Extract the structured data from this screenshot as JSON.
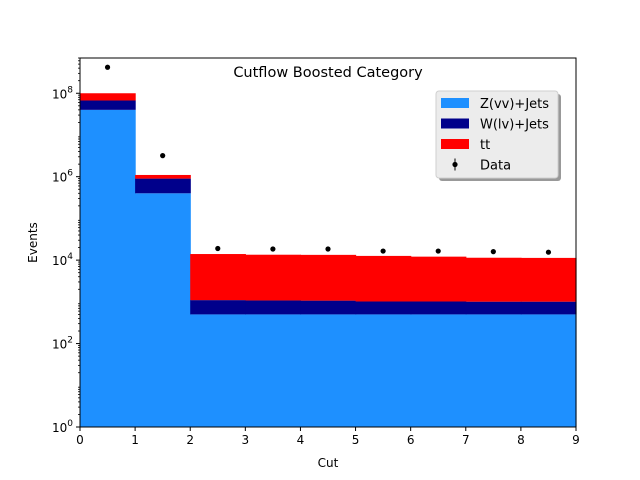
{
  "chart_data": {
    "type": "bar",
    "stacked": true,
    "histogram_steps": true,
    "title": "Cutflow Boosted Category",
    "xlabel": "Cut",
    "ylabel": "Events",
    "yscale": "log",
    "xlim": [
      0,
      9
    ],
    "ylim": [
      1,
      700000000
    ],
    "x_edges": [
      0,
      1,
      2,
      3,
      4,
      5,
      6,
      7,
      8,
      9
    ],
    "x_ticks": [
      0,
      1,
      2,
      3,
      4,
      5,
      6,
      7,
      8,
      9
    ],
    "y_ticks": [
      {
        "value": 1,
        "base": "10",
        "exp": "0"
      },
      {
        "value": 100,
        "base": "10",
        "exp": "2"
      },
      {
        "value": 10000,
        "base": "10",
        "exp": "4"
      },
      {
        "value": 1000000,
        "base": "10",
        "exp": "6"
      },
      {
        "value": 100000000,
        "base": "10",
        "exp": "8"
      }
    ],
    "series": [
      {
        "name": "Z(vv)+Jets",
        "color": "#1e90ff",
        "values": [
          40000000,
          400000,
          500,
          500,
          500,
          500,
          500,
          500,
          500
        ]
      },
      {
        "name": "W(lv)+Jets",
        "color": "#00008b",
        "values": [
          27000000,
          500000,
          600,
          580,
          570,
          520,
          520,
          510,
          510
        ]
      },
      {
        "name": "tt",
        "color": "#ff0000",
        "values": [
          33000000,
          200000,
          12900,
          12400,
          12300,
          11600,
          11100,
          10400,
          10300
        ]
      }
    ],
    "data": {
      "name": "Data",
      "color": "#000000",
      "x": [
        0.5,
        1.5,
        2.5,
        3.5,
        4.5,
        5.5,
        6.5,
        7.5,
        8.5
      ],
      "y": [
        420000000,
        3200000,
        19000,
        18500,
        18500,
        16500,
        16500,
        16000,
        15500
      ]
    },
    "legend_position": "upper right"
  }
}
